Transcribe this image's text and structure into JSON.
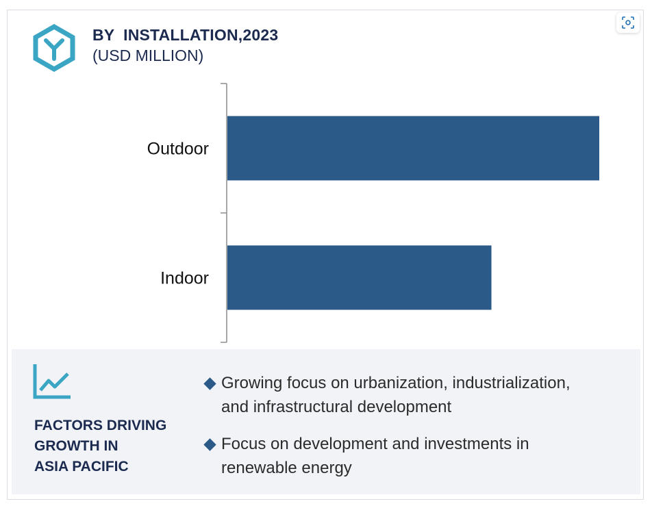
{
  "header": {
    "title": "BY  INSTALLATION,2023",
    "subtitle": "(USD MILLION)",
    "logo_icon": "hexagon-y-logo-icon",
    "scan_icon": "scan-image-icon"
  },
  "colors": {
    "bar": "#2b5988",
    "title": "#1b2a4e",
    "accent": "#3aa6c4",
    "panel": "#f1f3f7"
  },
  "chart_data": {
    "type": "bar",
    "orientation": "horizontal",
    "categories": [
      "Outdoor",
      "Indoor"
    ],
    "values": [
      100,
      71
    ],
    "title": "BY  INSTALLATION,2023",
    "subtitle": "(USD MILLION)",
    "xlabel": "",
    "ylabel": "",
    "xlim": [
      0,
      100
    ],
    "grid": false,
    "legend": "none"
  },
  "factors": {
    "icon": "line-chart-trend-icon",
    "title_lines": [
      "FACTORS DRIVING",
      "GROWTH IN",
      "ASIA PACIFIC"
    ],
    "bullets": [
      {
        "line1": "Growing focus on urbanization, industrialization,",
        "line2": "and infrastructural development"
      },
      {
        "line1": "Focus on development and investments in",
        "line2": "renewable energy"
      }
    ]
  }
}
